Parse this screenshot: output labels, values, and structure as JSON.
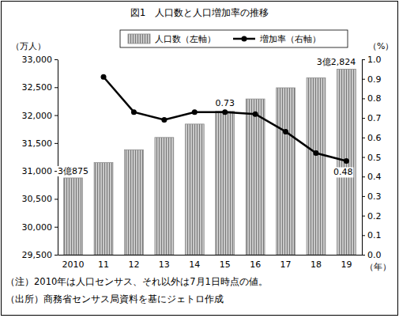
{
  "chart_data": {
    "type": "bar",
    "title": "図1　人口数と人口増加率の推移",
    "ylabel": "（万人）",
    "y2label": "（%）",
    "xlabel": "（年）",
    "categories": [
      "2010",
      "11",
      "12",
      "13",
      "14",
      "15",
      "16",
      "17",
      "18",
      "19"
    ],
    "series": [
      {
        "name": "人口数（左軸）",
        "type": "bar",
        "color": "#c8c8c8",
        "values": [
          30875,
          31150,
          31380,
          31600,
          31840,
          32070,
          32290,
          32490,
          32670,
          32824
        ],
        "value_labels": [
          "3億875",
          null,
          null,
          null,
          null,
          null,
          null,
          null,
          null,
          "3億2,824"
        ]
      },
      {
        "name": "増加率（右軸）",
        "type": "line",
        "axis": "y2",
        "color": "#000000",
        "marker": "circle",
        "values": [
          null,
          0.91,
          0.73,
          0.69,
          0.73,
          0.73,
          0.72,
          0.63,
          0.52,
          0.48
        ],
        "value_labels": [
          null,
          null,
          null,
          null,
          null,
          "0.73",
          null,
          null,
          null,
          "0.48"
        ]
      }
    ],
    "ylim": [
      29500,
      33000
    ],
    "yticks": [
      {
        "value": 29500,
        "label": "29,500"
      },
      {
        "value": 30000,
        "label": "30,000"
      },
      {
        "value": 30500,
        "label": "30,500"
      },
      {
        "value": 31000,
        "label": "31,000"
      },
      {
        "value": 31500,
        "label": "31,500"
      },
      {
        "value": 32000,
        "label": "32,000"
      },
      {
        "value": 32500,
        "label": "32,500"
      },
      {
        "value": 33000,
        "label": "33,000"
      }
    ],
    "y2lim": [
      0,
      1
    ],
    "y2ticks": [
      {
        "value": 0,
        "label": "0.0"
      },
      0.1,
      0.2,
      0.3,
      0.4,
      0.5,
      0.6,
      0.7,
      0.8,
      0.9,
      {
        "value": 1,
        "label": "1.0"
      }
    ],
    "grid": false,
    "legend": "top",
    "data_labels": true,
    "notes": [
      "（注）2010年は人口センサス、それ以外は7月1日時点の値。",
      "（出所）商務省センサス局資料を基にジェトロ作成"
    ]
  }
}
